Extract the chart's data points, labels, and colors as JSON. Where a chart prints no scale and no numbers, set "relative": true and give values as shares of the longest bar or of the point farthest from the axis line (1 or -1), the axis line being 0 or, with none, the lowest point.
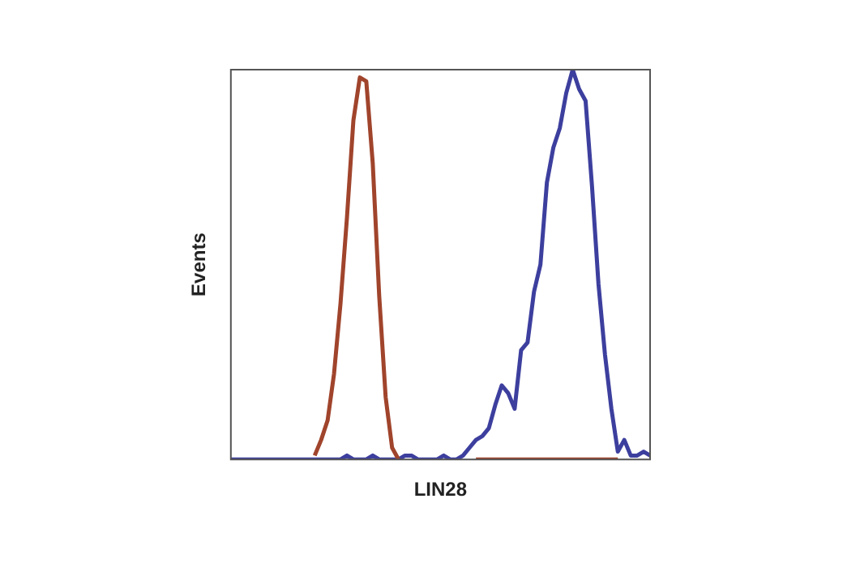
{
  "chart_data": {
    "type": "line",
    "xlabel": "LIN28",
    "ylabel": "Events",
    "relative": true,
    "tick_labels": false,
    "marker": "none",
    "categories": [
      null,
      null,
      null,
      null,
      null,
      null,
      null,
      null,
      null,
      null,
      null,
      null,
      null,
      null,
      null,
      null,
      null,
      null,
      null,
      null,
      null,
      null,
      null,
      null,
      null,
      null,
      null,
      null,
      null,
      null,
      null,
      null,
      null,
      null,
      null,
      null,
      null,
      null,
      null,
      null,
      null,
      null,
      null,
      null,
      null,
      null,
      null,
      null,
      null,
      null,
      null,
      null,
      null,
      null,
      null,
      null,
      null,
      null,
      null,
      null,
      null,
      null,
      null,
      null,
      null,
      null
    ],
    "series": [
      {
        "color": "#a0442c",
        "values": [
          null,
          null,
          null,
          null,
          null,
          null,
          null,
          null,
          null,
          null,
          null,
          null,
          null,
          0.01,
          0.05,
          0.1,
          0.22,
          0.4,
          0.62,
          0.87,
          0.98,
          0.97,
          0.76,
          0.42,
          0.16,
          0.03,
          0,
          null,
          null,
          null,
          null,
          null,
          null,
          null,
          null,
          null,
          null,
          null,
          0,
          0,
          0,
          0,
          0,
          0,
          0,
          0,
          0,
          0,
          0,
          0,
          0,
          0,
          0,
          0,
          0,
          0,
          0,
          0,
          0,
          0,
          0,
          null,
          null,
          null,
          null,
          null
        ]
      },
      {
        "color": "#3d3f9e",
        "values": [
          0,
          0,
          0,
          0,
          0,
          0,
          0,
          0,
          0,
          0,
          0,
          0,
          0,
          0,
          0,
          0,
          0,
          0,
          0.01,
          0,
          0,
          0,
          0.01,
          0,
          0,
          0,
          0,
          0.01,
          0.01,
          0,
          0,
          0,
          0,
          0.01,
          0,
          0,
          0.01,
          0.03,
          0.05,
          0.06,
          0.08,
          0.14,
          0.19,
          0.17,
          0.13,
          0.28,
          0.3,
          0.43,
          0.5,
          0.71,
          0.8,
          0.85,
          0.94,
          1,
          0.95,
          0.92,
          0.7,
          0.45,
          0.27,
          0.13,
          0.02,
          0.05,
          0.01,
          0.01,
          0.02,
          0.01
        ]
      }
    ]
  }
}
